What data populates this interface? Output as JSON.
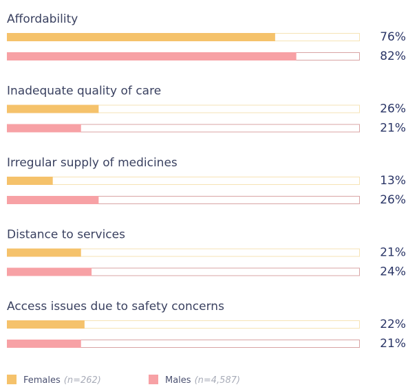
{
  "chart_data": {
    "type": "bar",
    "orientation": "horizontal",
    "categories": [
      "Affordability",
      "Inadequate quality of care",
      "Irregular supply of medicines",
      "Distance to services",
      "Access issues due to safety concerns"
    ],
    "xlim": [
      0,
      100
    ],
    "series": [
      {
        "name": "Females",
        "sample": "(n=262)",
        "color": "#f5c26b",
        "track": "#f6e3b4",
        "values": [
          76,
          26,
          13,
          21,
          22
        ],
        "value_labels": [
          "76%",
          "26%",
          "13%",
          "21%",
          "22%"
        ]
      },
      {
        "name": "Males",
        "sample": "(n=4,587)",
        "color": "#f7a1a5",
        "track": "#d8a3a3",
        "values": [
          82,
          21,
          26,
          24,
          21
        ],
        "value_labels": [
          "82%",
          "21%",
          "26%",
          "24%",
          "21%"
        ]
      }
    ],
    "legend": "bottom-left"
  }
}
